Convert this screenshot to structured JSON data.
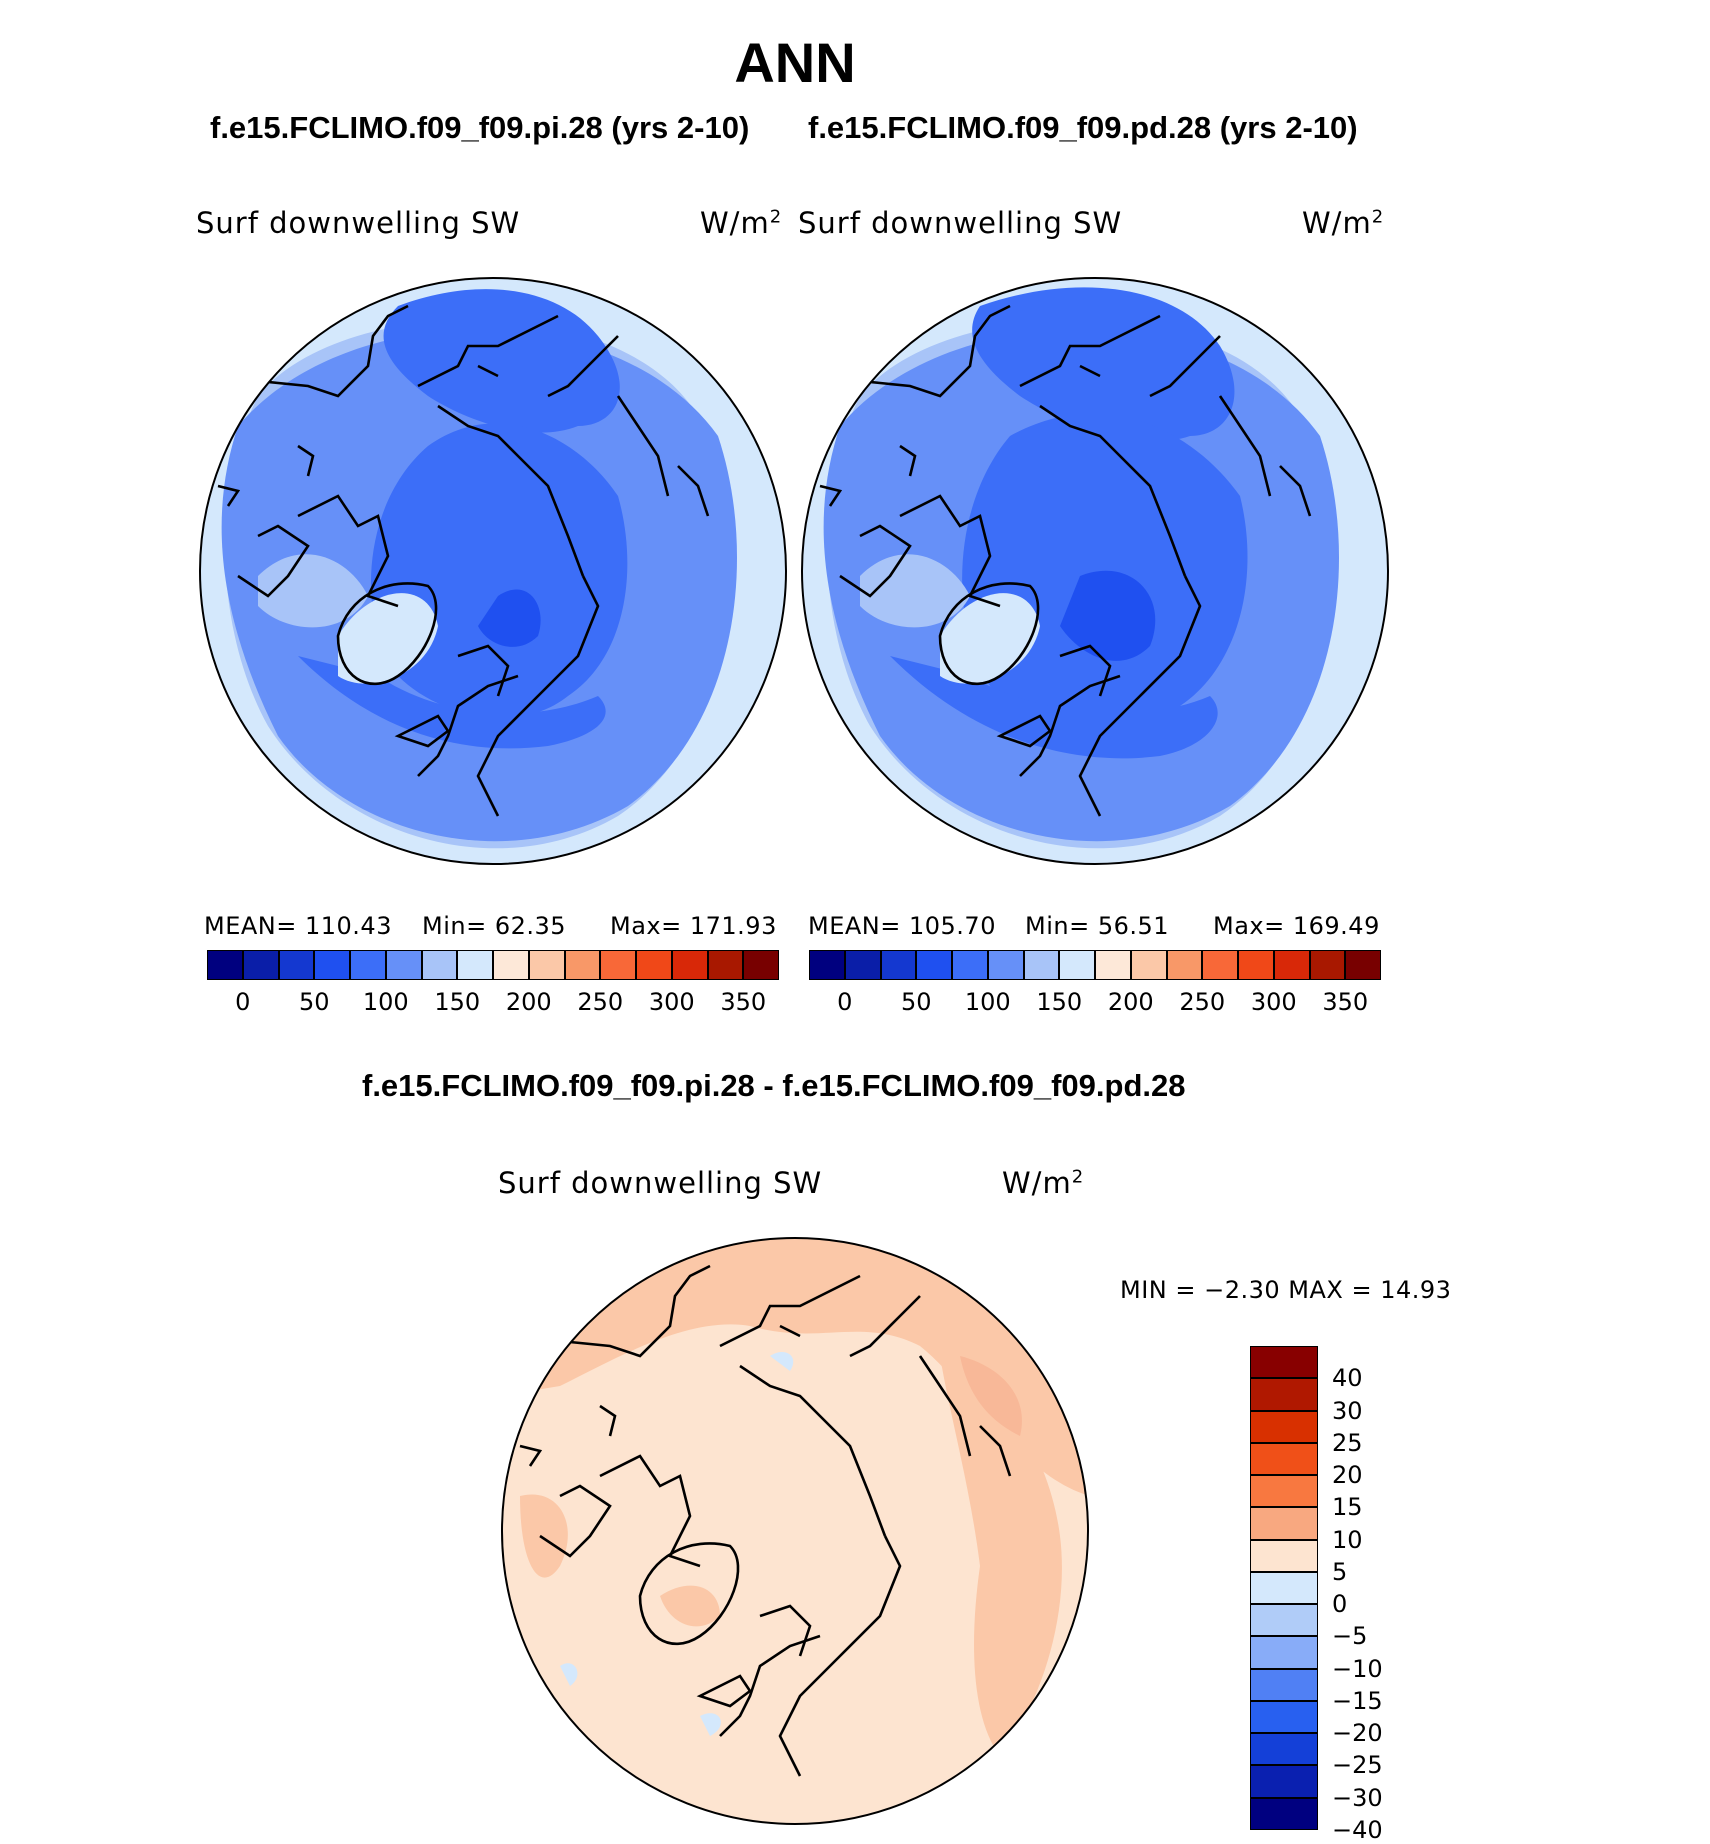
{
  "title": "ANN",
  "case_titles": {
    "left": "f.e15.FCLIMO.f09_f09.pi.28 (yrs 2-10)",
    "right": "f.e15.FCLIMO.f09_f09.pd.28 (yrs 2-10)",
    "diff": "f.e15.FCLIMO.f09_f09.pi.28 - f.e15.FCLIMO.f09_f09.pd.28"
  },
  "panels": {
    "left": {
      "variable": "Surf downwelling SW",
      "unit": "W/m",
      "unit_exp": "2",
      "mean": "MEAN= 110.43",
      "min": "Min=  62.35",
      "max": "Max= 171.93"
    },
    "right": {
      "variable": "Surf downwelling SW",
      "unit": "W/m",
      "unit_exp": "2",
      "mean": "MEAN= 105.70",
      "min": "Min=  56.51",
      "max": "Max= 169.49"
    },
    "diff": {
      "variable": "Surf downwelling SW",
      "unit": "W/m",
      "unit_exp": "2",
      "minmax": "MIN =   −2.30 MAX =   14.93"
    }
  },
  "chart_data": [
    {
      "type": "heatmap",
      "projection": "polar stereographic, North Pole",
      "variable": "Surf downwelling SW",
      "units": "W/m2",
      "stats": {
        "mean": 110.43,
        "min": 62.35,
        "max": 171.93
      },
      "colorbar_ticks": [
        "0",
        "50",
        "100",
        "150",
        "200",
        "250",
        "300",
        "350"
      ],
      "colorbar_colors": [
        "#00007f",
        "#0a1ea8",
        "#1438d0",
        "#1f50f0",
        "#3c6ef8",
        "#6690f8",
        "#a8c4f8",
        "#d4e8fc",
        "#fde8d8",
        "#fbc8a8",
        "#f89868",
        "#f86838",
        "#f04818",
        "#d82808",
        "#a81800",
        "#780000"
      ]
    },
    {
      "type": "heatmap",
      "projection": "polar stereographic, North Pole",
      "variable": "Surf downwelling SW",
      "units": "W/m2",
      "stats": {
        "mean": 105.7,
        "min": 56.51,
        "max": 169.49
      },
      "colorbar_ticks": [
        "0",
        "50",
        "100",
        "150",
        "200",
        "250",
        "300",
        "350"
      ],
      "colorbar_colors": [
        "#00007f",
        "#0a1ea8",
        "#1438d0",
        "#1f50f0",
        "#3c6ef8",
        "#6690f8",
        "#a8c4f8",
        "#d4e8fc",
        "#fde8d8",
        "#fbc8a8",
        "#f89868",
        "#f86838",
        "#f04818",
        "#d82808",
        "#a81800",
        "#780000"
      ]
    },
    {
      "type": "heatmap",
      "projection": "polar stereographic, North Pole",
      "variable": "Surf downwelling SW",
      "units": "W/m2",
      "stats": {
        "min": -2.3,
        "max": 14.93
      },
      "colorbar_ticks": [
        "40",
        "30",
        "25",
        "20",
        "15",
        "10",
        "5",
        "0",
        "−5",
        "−10",
        "−15",
        "−20",
        "−25",
        "−30",
        "−40"
      ],
      "colorbar_colors": [
        "#880000",
        "#b01800",
        "#d83000",
        "#f05018",
        "#f87840",
        "#f8a880",
        "#fde4d0",
        "#d4e8fc",
        "#b0ccf8",
        "#88acf8",
        "#5080f4",
        "#2860f0",
        "#1440d8",
        "#0a20b0",
        "#000080"
      ]
    }
  ],
  "map_colors": {
    "blue_land_light": "#a8c4f8",
    "blue_mid": "#6690f8",
    "blue_dark": "#3c6ef8",
    "blue_darkest": "#1f50f0",
    "blue_pale": "#d4e8fc",
    "diff_base": "#fde4d0",
    "diff_warm": "#f8b898",
    "diff_cool": "#d4e8fc"
  }
}
